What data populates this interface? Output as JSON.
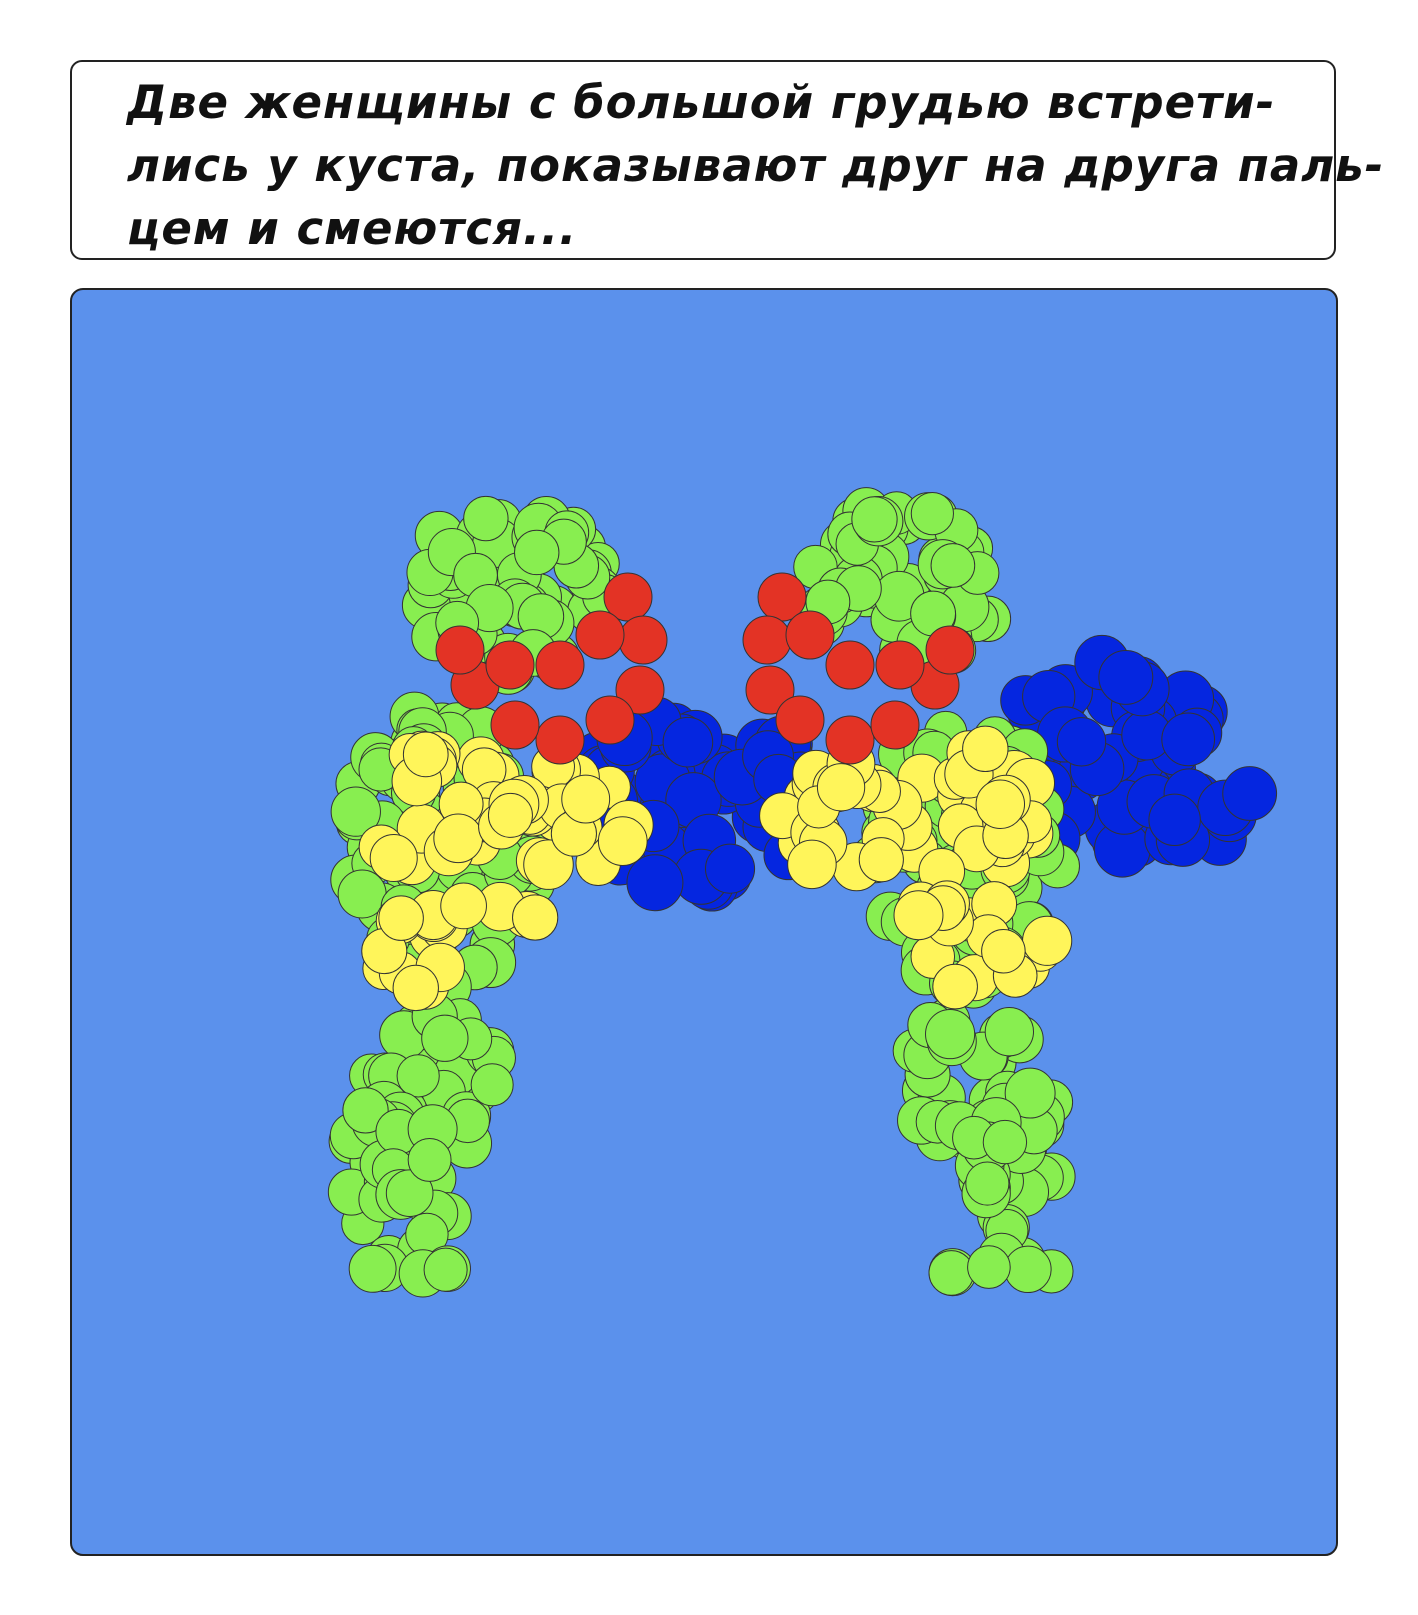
{
  "caption": {
    "lines": [
      "Две женщины с большой грудью встрети-",
      "лись у куста, показывают друг на друга паль-",
      "цем и смеются..."
    ]
  }
}
